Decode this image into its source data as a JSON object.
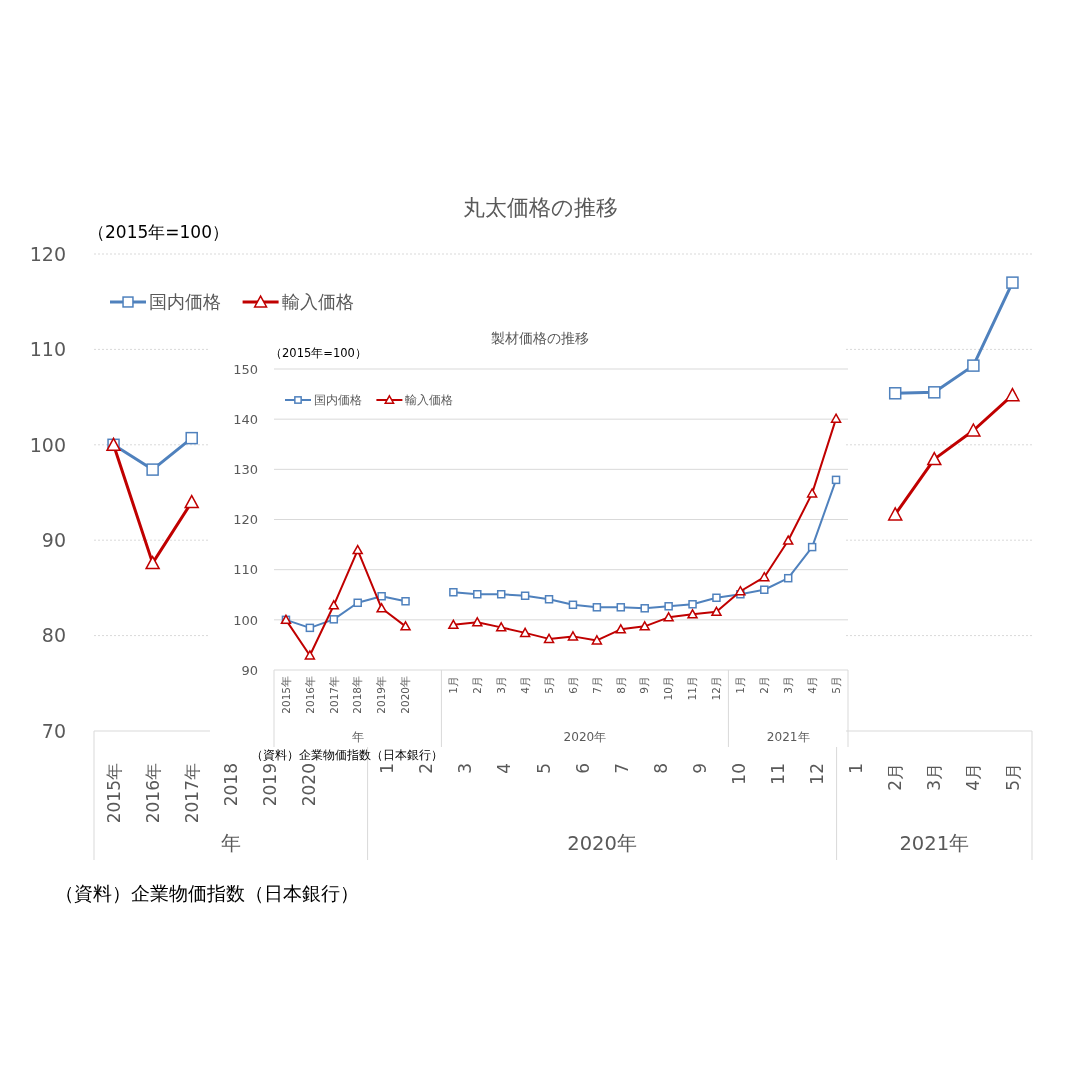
{
  "chart_data": [
    {
      "type": "line",
      "title": "丸太価格の推移",
      "ylabel": "（2015年=100）",
      "categories": [
        "2015年",
        "2016年",
        "2017年",
        "2018",
        "2019",
        "2020",
        null,
        "1",
        "2",
        "3",
        "4",
        "5",
        "6",
        "7",
        "8",
        "9",
        "10",
        "11",
        "12",
        "1",
        "2月",
        "3月",
        "4月",
        "5月"
      ],
      "series": [
        {
          "name": "国内価格",
          "color": "#4f81bd",
          "marker": "square",
          "values": [
            100,
            97.4,
            100.7,
            null,
            null,
            null,
            null,
            null,
            null,
            null,
            null,
            null,
            null,
            null,
            null,
            null,
            null,
            null,
            null,
            null,
            105.4,
            105.5,
            108.3,
            117.0
          ]
        },
        {
          "name": "輸入価格",
          "color": "#c00000",
          "marker": "triangle",
          "values": [
            100,
            87.6,
            94.0,
            null,
            null,
            null,
            null,
            null,
            null,
            null,
            null,
            null,
            null,
            null,
            null,
            null,
            null,
            null,
            null,
            null,
            92.7,
            98.5,
            101.5,
            105.2
          ]
        }
      ],
      "ylim": [
        70,
        120
      ],
      "yticks": [
        70,
        80,
        90,
        100,
        110,
        120
      ],
      "grid": "y",
      "legend": "top left",
      "annotations": [
        "（資料）企業物価指数（日本銀行）",
        "年",
        "2020年",
        "2021年"
      ]
    },
    {
      "type": "line",
      "title": "製材価格の推移",
      "ylabel": "（2015年=100）",
      "categories": [
        "2015年",
        "2016年",
        "2017年",
        "2018年",
        "2019年",
        "2020年",
        null,
        "1月",
        "2月",
        "3月",
        "4月",
        "5月",
        "6月",
        "7月",
        "8月",
        "9月",
        "10月",
        "11月",
        "12月",
        "1月",
        "2月",
        "3月",
        "4月",
        "5月"
      ],
      "series": [
        {
          "name": "国内価格",
          "color": "#4f81bd",
          "marker": "square",
          "values": [
            100,
            98.4,
            100.1,
            103.4,
            104.7,
            103.7,
            null,
            105.5,
            105.1,
            105.1,
            104.8,
            104.1,
            103.0,
            102.5,
            102.5,
            102.3,
            102.7,
            103.1,
            104.4,
            105.1,
            106.0,
            108.3,
            114.5,
            127.9
          ]
        },
        {
          "name": "輸入価格",
          "color": "#c00000",
          "marker": "triangle",
          "values": [
            100,
            92.9,
            102.9,
            113.9,
            102.3,
            98.7,
            null,
            99.0,
            99.5,
            98.5,
            97.4,
            96.2,
            96.7,
            95.9,
            98.1,
            98.7,
            100.5,
            101.1,
            101.6,
            105.7,
            108.5,
            115.8,
            125.2,
            140.1
          ]
        }
      ],
      "ylim": [
        90,
        150
      ],
      "yticks": [
        90,
        100,
        110,
        120,
        130,
        140,
        150
      ],
      "grid": "y",
      "legend": "top left",
      "annotations": [
        "（資料）企業物価指数（日本銀行）",
        "年",
        "2020年",
        "2021年"
      ]
    }
  ]
}
